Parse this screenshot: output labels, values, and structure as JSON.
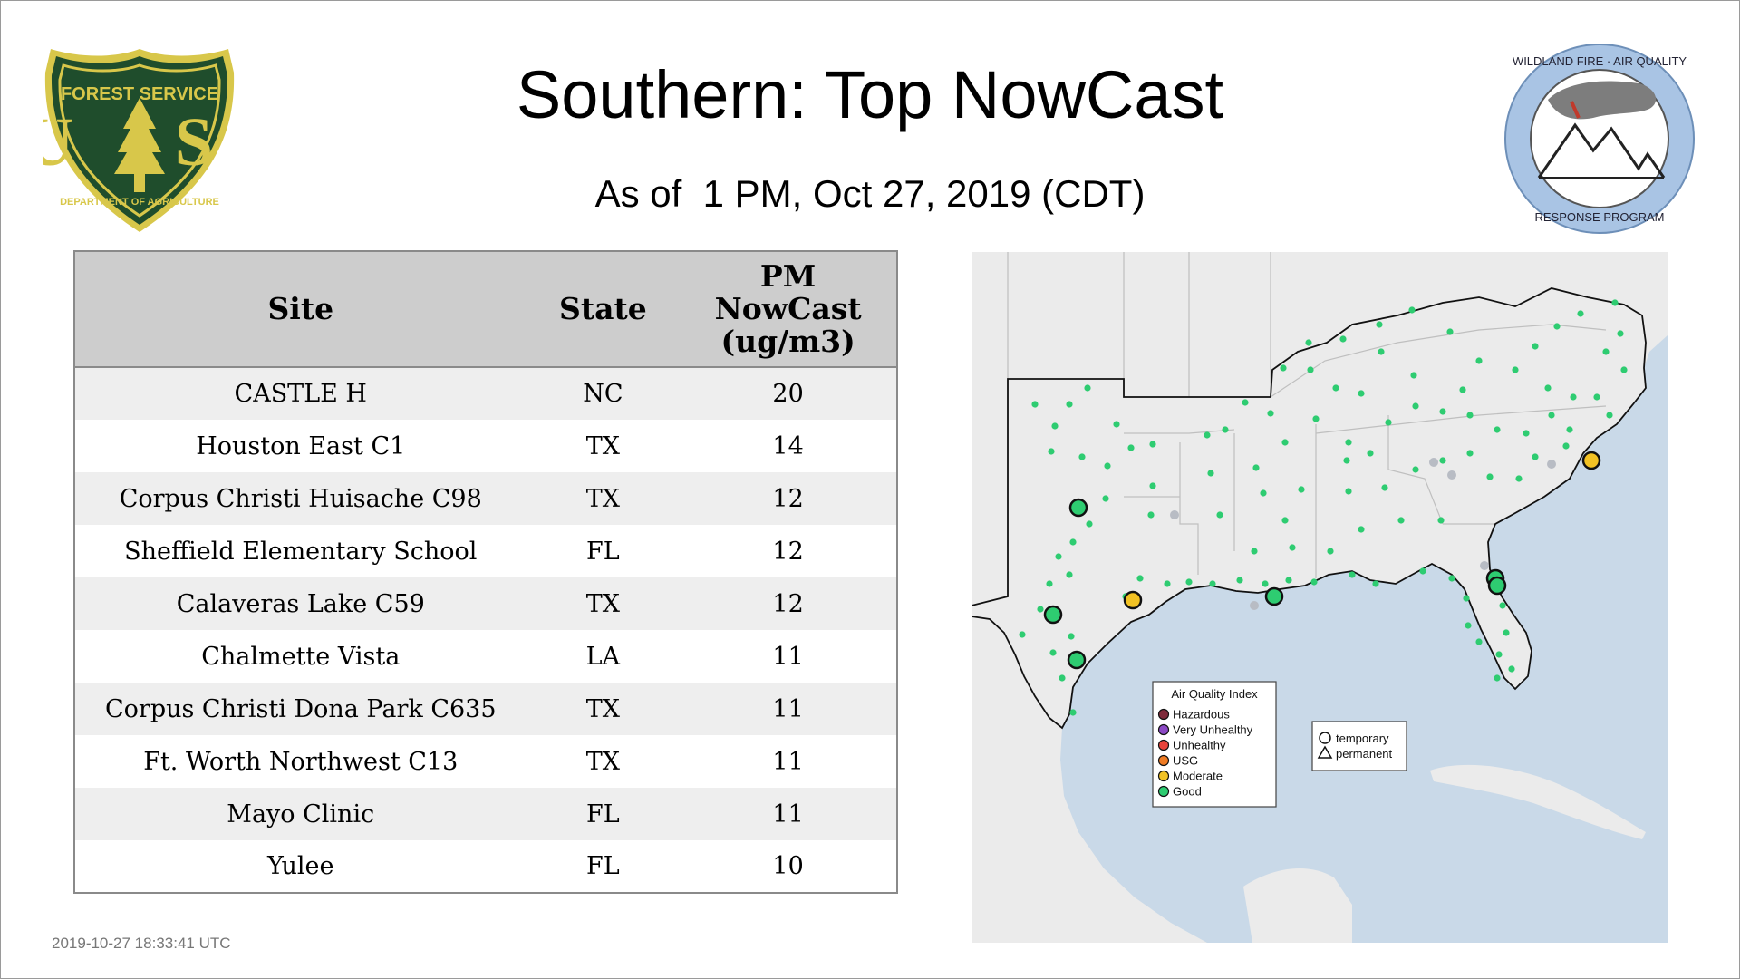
{
  "header": {
    "title": "Southern: Top NowCast",
    "subtitle": "As of  1 PM, Oct 27, 2019 (CDT)"
  },
  "logos": {
    "forest_service": {
      "top_text": "FOREST SERVICE",
      "letters": "U S",
      "bottom_text": "DEPARTMENT OF AGRICULTURE"
    },
    "wildland": {
      "ring_text_top": "WILDLAND FIRE · AIR QUALITY",
      "ring_text_bottom": "RESPONSE PROGRAM"
    }
  },
  "table": {
    "columns": [
      "Site",
      "State",
      "PM NowCast (ug/m3)"
    ],
    "rows": [
      {
        "site": "CASTLE H",
        "state": "NC",
        "pm": "20"
      },
      {
        "site": "Houston East C1",
        "state": "TX",
        "pm": "14"
      },
      {
        "site": "Corpus Christi Huisache C98",
        "state": "TX",
        "pm": "12"
      },
      {
        "site": "Sheffield Elementary School",
        "state": "FL",
        "pm": "12"
      },
      {
        "site": "Calaveras Lake C59",
        "state": "TX",
        "pm": "12"
      },
      {
        "site": "Chalmette Vista",
        "state": "LA",
        "pm": "11"
      },
      {
        "site": "Corpus Christi Dona Park C635",
        "state": "TX",
        "pm": "11"
      },
      {
        "site": "Ft. Worth Northwest C13",
        "state": "TX",
        "pm": "11"
      },
      {
        "site": "Mayo Clinic",
        "state": "FL",
        "pm": "11"
      },
      {
        "site": "Yulee",
        "state": "FL",
        "pm": "10"
      }
    ]
  },
  "timestamp": "2019-10-27 18:33:41 UTC",
  "map": {
    "legend": {
      "title": "Air Quality Index",
      "items": [
        {
          "label": "Hazardous",
          "color": "#7e2a3a"
        },
        {
          "label": "Very Unhealthy",
          "color": "#8b48c4"
        },
        {
          "label": "Unhealthy",
          "color": "#e8433a"
        },
        {
          "label": "USG",
          "color": "#ef7b23"
        },
        {
          "label": "Moderate",
          "color": "#f2c224"
        },
        {
          "label": "Good",
          "color": "#2ecc71"
        }
      ]
    },
    "shape_legend": [
      {
        "label": "temporary"
      },
      {
        "label": "permanent"
      }
    ],
    "colors": {
      "water": "#c9d9e8",
      "land": "#ebebeb",
      "good": "#2ecc71",
      "moderate": "#f2c224"
    }
  }
}
